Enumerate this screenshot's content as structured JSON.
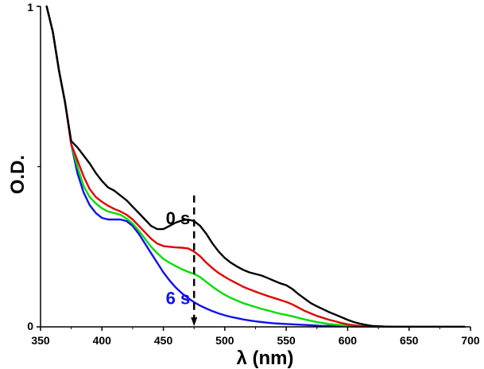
{
  "chart_data": {
    "type": "line",
    "title": "",
    "xlabel": "λ (nm)",
    "ylabel": "O.D.",
    "xlim": [
      350,
      700
    ],
    "ylim": [
      0,
      1
    ],
    "x_ticks": [
      350,
      400,
      450,
      500,
      550,
      600,
      650,
      700
    ],
    "y_ticks": [
      0,
      1
    ],
    "grid": false,
    "series": [
      {
        "name": "0 s",
        "color": "#000000",
        "x": [
          355,
          360,
          365,
          370,
          375,
          380,
          385,
          390,
          395,
          400,
          405,
          410,
          415,
          420,
          425,
          430,
          435,
          440,
          445,
          450,
          455,
          460,
          465,
          470,
          475,
          480,
          485,
          490,
          495,
          500,
          505,
          510,
          515,
          520,
          525,
          530,
          535,
          540,
          545,
          550,
          555,
          560,
          565,
          570,
          575,
          580,
          585,
          590,
          595,
          600,
          605,
          610,
          615,
          620,
          625,
          630,
          640,
          650,
          660,
          670,
          680,
          690,
          695
        ],
        "y": [
          1.0,
          0.92,
          0.8,
          0.7,
          0.58,
          0.56,
          0.535,
          0.51,
          0.48,
          0.455,
          0.435,
          0.425,
          0.41,
          0.395,
          0.375,
          0.355,
          0.335,
          0.315,
          0.305,
          0.305,
          0.315,
          0.325,
          0.332,
          0.335,
          0.33,
          0.315,
          0.29,
          0.26,
          0.235,
          0.215,
          0.2,
          0.188,
          0.178,
          0.17,
          0.165,
          0.16,
          0.152,
          0.144,
          0.136,
          0.13,
          0.118,
          0.102,
          0.088,
          0.074,
          0.064,
          0.055,
          0.046,
          0.038,
          0.03,
          0.022,
          0.015,
          0.01,
          0.006,
          0.003,
          0.002,
          0.001,
          0.0,
          0.0,
          0.0,
          0.0,
          0.0,
          0.0,
          0.0
        ]
      },
      {
        "name": "red",
        "color": "#e00000",
        "x": [
          355,
          360,
          365,
          370,
          375,
          380,
          385,
          390,
          395,
          400,
          405,
          410,
          415,
          420,
          425,
          430,
          435,
          440,
          445,
          450,
          455,
          460,
          465,
          470,
          475,
          480,
          485,
          490,
          495,
          500,
          505,
          510,
          515,
          520,
          525,
          530,
          535,
          540,
          545,
          550,
          555,
          560,
          565,
          570,
          575,
          580,
          585,
          590,
          595,
          600,
          605,
          610,
          615,
          620,
          625,
          630,
          640,
          650,
          660,
          670,
          680,
          690,
          695
        ],
        "y": [
          1.0,
          0.92,
          0.8,
          0.7,
          0.57,
          0.52,
          0.47,
          0.43,
          0.405,
          0.39,
          0.378,
          0.368,
          0.36,
          0.35,
          0.335,
          0.315,
          0.295,
          0.275,
          0.26,
          0.252,
          0.25,
          0.248,
          0.247,
          0.245,
          0.235,
          0.22,
          0.2,
          0.183,
          0.168,
          0.156,
          0.145,
          0.135,
          0.125,
          0.117,
          0.11,
          0.103,
          0.096,
          0.09,
          0.084,
          0.078,
          0.07,
          0.06,
          0.05,
          0.042,
          0.034,
          0.028,
          0.022,
          0.017,
          0.012,
          0.008,
          0.005,
          0.003,
          0.002,
          0.001,
          0.0,
          0.0,
          0.0,
          0.0,
          0.0,
          0.0,
          0.0,
          0.0,
          0.0
        ]
      },
      {
        "name": "green",
        "color": "#00dd00",
        "x": [
          355,
          360,
          365,
          370,
          375,
          380,
          385,
          390,
          395,
          400,
          405,
          410,
          415,
          420,
          425,
          430,
          435,
          440,
          445,
          450,
          455,
          460,
          465,
          470,
          475,
          480,
          485,
          490,
          495,
          500,
          505,
          510,
          515,
          520,
          525,
          530,
          535,
          540,
          545,
          550,
          555,
          560,
          565,
          570,
          575,
          580,
          585,
          590,
          595,
          600,
          605,
          610,
          615,
          620,
          625,
          630,
          640,
          650,
          660,
          670,
          680,
          690,
          695
        ],
        "y": [
          1.0,
          0.92,
          0.8,
          0.7,
          0.57,
          0.5,
          0.44,
          0.405,
          0.385,
          0.37,
          0.36,
          0.355,
          0.35,
          0.338,
          0.322,
          0.3,
          0.275,
          0.25,
          0.23,
          0.212,
          0.2,
          0.19,
          0.18,
          0.172,
          0.165,
          0.155,
          0.14,
          0.125,
          0.112,
          0.1,
          0.09,
          0.082,
          0.074,
          0.068,
          0.062,
          0.056,
          0.051,
          0.046,
          0.041,
          0.037,
          0.033,
          0.028,
          0.023,
          0.019,
          0.015,
          0.012,
          0.009,
          0.007,
          0.005,
          0.003,
          0.002,
          0.001,
          0.0,
          0.0,
          0.0,
          0.0,
          0.0,
          0.0,
          0.0,
          0.0,
          0.0,
          0.0,
          0.0
        ]
      },
      {
        "name": "6 s",
        "color": "#1010ee",
        "x": [
          355,
          360,
          365,
          370,
          375,
          380,
          385,
          390,
          395,
          400,
          405,
          410,
          415,
          420,
          425,
          430,
          435,
          440,
          445,
          450,
          455,
          460,
          465,
          470,
          475,
          480,
          485,
          490,
          495,
          500,
          505,
          510,
          515,
          520,
          525,
          530,
          535,
          540,
          545,
          550,
          555,
          560,
          565,
          570,
          575,
          580,
          585,
          590,
          595,
          600,
          605,
          610,
          615,
          620,
          625,
          630,
          640,
          650,
          660,
          670,
          680,
          690,
          695
        ],
        "y": [
          1.0,
          0.92,
          0.8,
          0.7,
          0.57,
          0.48,
          0.42,
          0.38,
          0.355,
          0.34,
          0.335,
          0.335,
          0.335,
          0.33,
          0.315,
          0.29,
          0.26,
          0.23,
          0.2,
          0.17,
          0.145,
          0.123,
          0.105,
          0.09,
          0.077,
          0.066,
          0.057,
          0.049,
          0.042,
          0.036,
          0.031,
          0.027,
          0.023,
          0.02,
          0.017,
          0.015,
          0.013,
          0.011,
          0.01,
          0.009,
          0.008,
          0.007,
          0.006,
          0.005,
          0.004,
          0.003,
          0.003,
          0.002,
          0.002,
          0.002,
          0.001,
          0.001,
          0.001,
          0.001,
          0.001,
          0.0,
          0.0,
          0.0,
          0.0,
          0.0,
          0.0,
          0.0,
          0.0
        ]
      }
    ],
    "annotations": [
      {
        "text": "0 s",
        "color": "#000000",
        "x": 475,
        "y": 0.34
      },
      {
        "text": "6 s",
        "color": "#1010ee",
        "x": 475,
        "y": 0.09
      }
    ],
    "arrow": {
      "x": 475,
      "y_start": 0.41,
      "y_end": 0.0,
      "direction": "down",
      "style": "dashed"
    }
  }
}
